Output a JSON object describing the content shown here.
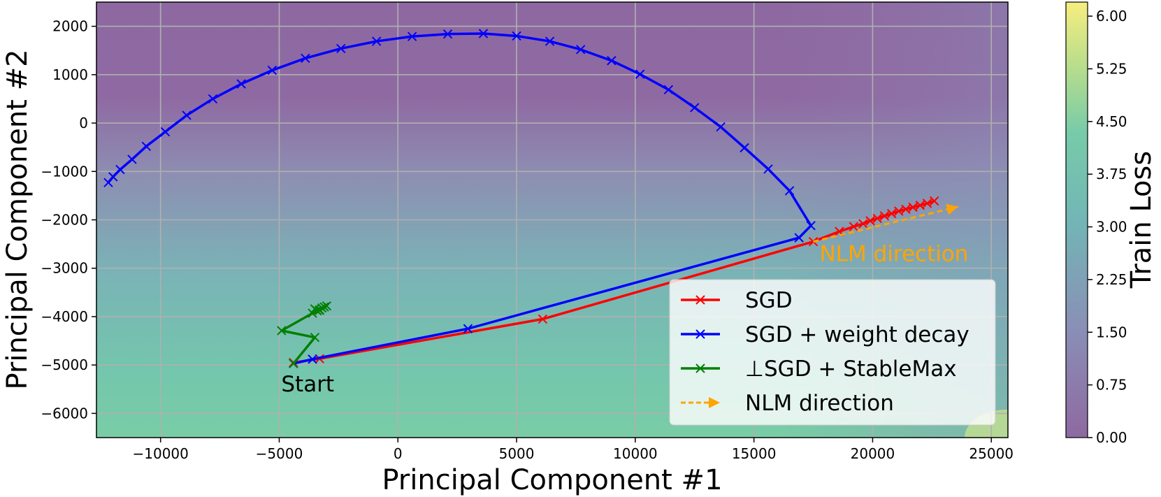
{
  "chart_data": {
    "type": "line",
    "xlabel": "Principal Component #1",
    "ylabel": "Principal Component #2",
    "xlim": [
      -12700,
      25700
    ],
    "ylim": [
      -6500,
      2500
    ],
    "xticks": [
      -10000,
      -5000,
      0,
      5000,
      10000,
      15000,
      20000,
      25000
    ],
    "xtick_labels": [
      "−10000",
      "−5000",
      "0",
      "5000",
      "10000",
      "15000",
      "20000",
      "25000"
    ],
    "yticks": [
      2000,
      1000,
      0,
      -1000,
      -2000,
      -3000,
      -4000,
      -5000,
      -6000
    ],
    "ytick_labels": [
      "2000",
      "1000",
      "0",
      "−1000",
      "−2000",
      "−3000",
      "−4000",
      "−5000",
      "−6000"
    ],
    "grid": true,
    "legend_position": "lower-right",
    "background_colormap": "viridis (alpha 0.6)",
    "colorbar": {
      "label": "Train Loss",
      "min": 0,
      "max": 6.2,
      "ticks": [
        0.0,
        0.75,
        1.5,
        2.25,
        3.0,
        3.75,
        4.5,
        5.25,
        6.0
      ],
      "tick_labels": [
        "0.00",
        "0.75",
        "1.50",
        "2.25",
        "3.00",
        "3.75",
        "4.50",
        "5.25",
        "6.00"
      ]
    },
    "annotations": [
      {
        "text": "Start",
        "x": -3800,
        "y": -5550,
        "color": "#000000"
      },
      {
        "text": "NLM direction",
        "x": 20900,
        "y": -2850,
        "color": "#ffa500"
      }
    ],
    "series": [
      {
        "name": "SGD",
        "color": "#ff0000",
        "marker": "x",
        "x": [
          -4400,
          -3300,
          6100,
          17500,
          18600,
          19200,
          19600,
          19900,
          20200,
          20500,
          20800,
          21100,
          21400,
          21700,
          22000,
          22300,
          22600
        ],
        "y": [
          -4950,
          -4870,
          -4050,
          -2450,
          -2240,
          -2140,
          -2080,
          -2020,
          -1970,
          -1920,
          -1870,
          -1820,
          -1780,
          -1740,
          -1700,
          -1660,
          -1610
        ]
      },
      {
        "name": "SGD + weight decay",
        "color": "#0000ff",
        "marker": "x",
        "x": [
          -4400,
          -3600,
          2950,
          16900,
          17400,
          16500,
          15600,
          14600,
          13600,
          12500,
          11400,
          10200,
          9000,
          7700,
          6400,
          5000,
          3600,
          2100,
          600,
          -900,
          -2400,
          -3900,
          -5300,
          -6600,
          -7800,
          -8900,
          -9800,
          -10600,
          -11200,
          -11700,
          -12000,
          -12200
        ],
        "y": [
          -4970,
          -4880,
          -4250,
          -2370,
          -2120,
          -1400,
          -950,
          -510,
          -80,
          320,
          690,
          1010,
          1290,
          1520,
          1690,
          1800,
          1850,
          1840,
          1790,
          1690,
          1540,
          1340,
          1090,
          810,
          500,
          160,
          -180,
          -480,
          -750,
          -960,
          -1110,
          -1230
        ]
      },
      {
        "name": "⊥SGD + StableMax",
        "color": "#008000",
        "marker": "x",
        "x": [
          -4400,
          -3500,
          -4900,
          -3600,
          -3300,
          -3500,
          -3200,
          -3400,
          -3100,
          -3300,
          -3000
        ],
        "y": [
          -4970,
          -4430,
          -4290,
          -3930,
          -3870,
          -3840,
          -3820,
          -3880,
          -3800,
          -3860,
          -3780
        ]
      },
      {
        "name": "NLM direction",
        "color": "#ffa500",
        "marker": "arrow",
        "dashed": true,
        "x": [
          17500,
          23600
        ],
        "y": [
          -2450,
          -1730
        ]
      }
    ]
  }
}
